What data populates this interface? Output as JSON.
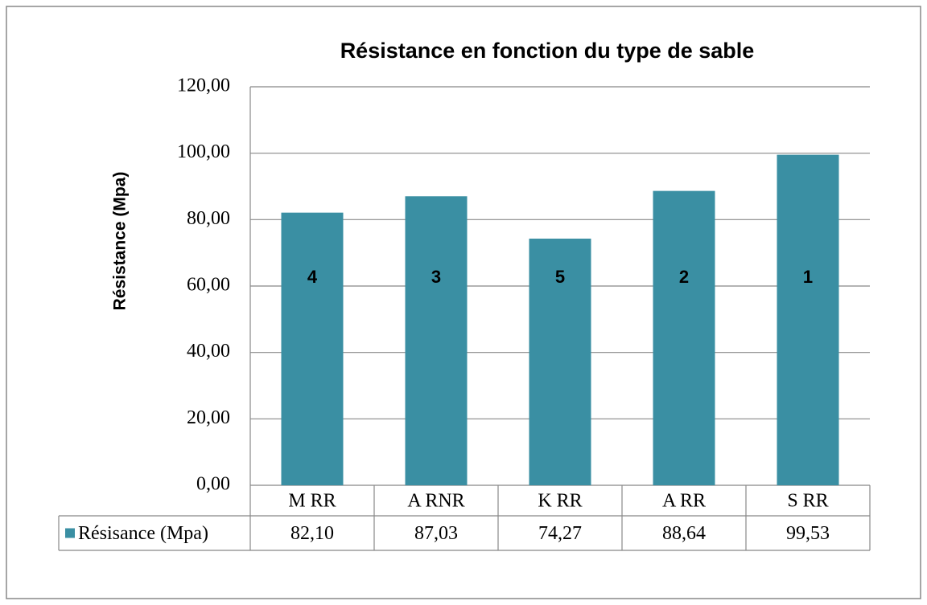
{
  "chart_data": {
    "type": "bar",
    "title": "Résistance en fonction du type de sable",
    "y_label": "Résistance  (Mpa)",
    "categories": [
      "M RR",
      "A RNR",
      "K RR",
      "A RR",
      "S RR"
    ],
    "series": [
      {
        "name": "Résisance (Mpa)",
        "color": "#3a8fa3",
        "values": [
          82.1,
          87.03,
          74.27,
          88.64,
          99.53
        ],
        "value_labels": [
          "82,10",
          "87,03",
          "74,27",
          "88,64",
          "99,53"
        ]
      }
    ],
    "annotations": [
      "4",
      "3",
      "5",
      "2",
      "1"
    ],
    "ylim": [
      0,
      120
    ],
    "yticks": [
      {
        "value": 0,
        "label": "0,00"
      },
      {
        "value": 20,
        "label": "20,00"
      },
      {
        "value": 40,
        "label": "40,00"
      },
      {
        "value": 60,
        "label": "60,00"
      },
      {
        "value": 80,
        "label": "80,00"
      },
      {
        "value": 100,
        "label": "100,00"
      },
      {
        "value": 120,
        "label": "120,00"
      }
    ],
    "grid": true
  }
}
